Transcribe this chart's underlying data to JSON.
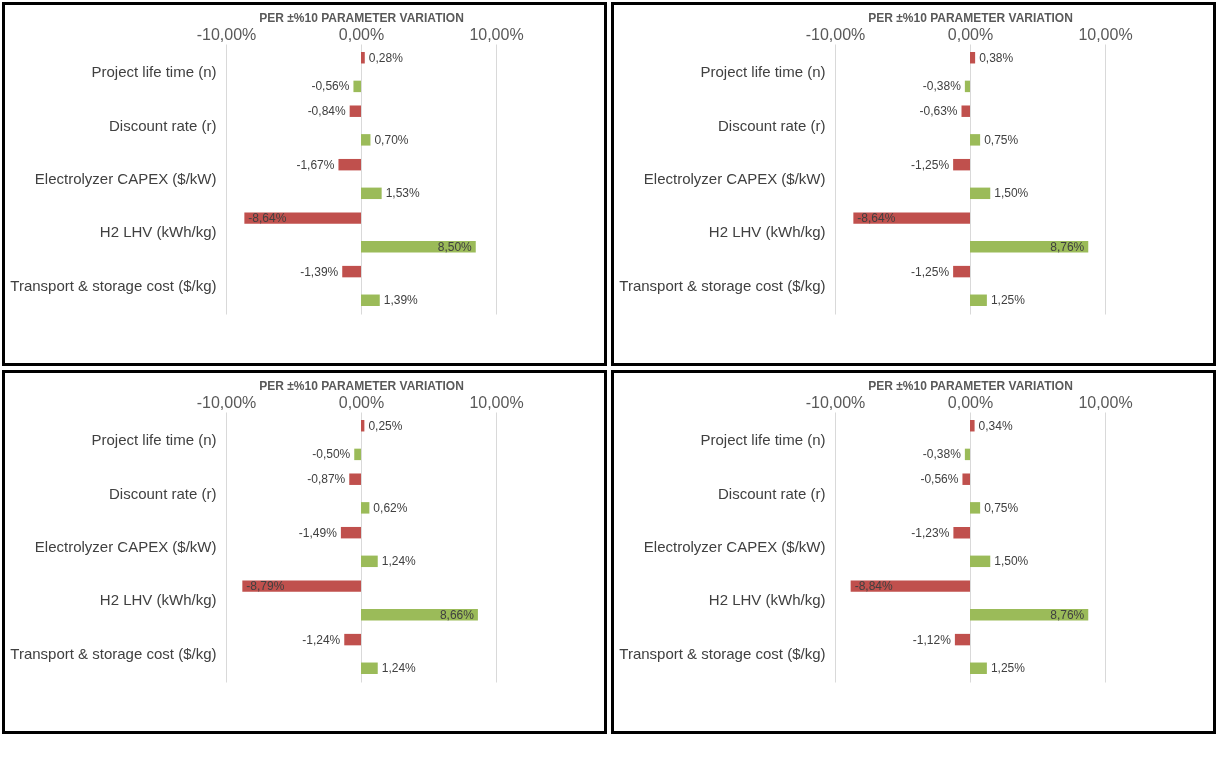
{
  "chart_data": [
    {
      "type": "bar",
      "orientation": "horizontal",
      "xlabel": "PER ±%10 PARAMETER  VARIATION",
      "categories": [
        "Project life time (n)",
        "Discount rate (r)",
        "Electrolyzer CAPEX ($/kW)",
        "H2 LHV (kWh/kg)",
        "Transport & storage cost ($/kg)"
      ],
      "xlim": [
        -10,
        10
      ],
      "xticks": [
        {
          "value": -10,
          "label": "-10,00%"
        },
        {
          "value": 0,
          "label": "0,00%"
        },
        {
          "value": 10,
          "label": "10,00%"
        }
      ],
      "grid": "x",
      "series": [
        {
          "color": "#c0504d",
          "values": [
            0.28,
            -0.84,
            -1.67,
            -8.64,
            -1.39
          ],
          "value_labels": [
            "0,28%",
            "-0,84%",
            "-1,67%",
            "-8,64%",
            "-1,39%"
          ]
        },
        {
          "color": "#9bbb59",
          "values": [
            -0.56,
            0.7,
            1.53,
            8.5,
            1.39
          ],
          "value_labels": [
            "-0,56%",
            "0,70%",
            "1,53%",
            "8,50%",
            "1,39%"
          ]
        }
      ]
    },
    {
      "type": "bar",
      "orientation": "horizontal",
      "xlabel": "PER ±%10 PARAMETER  VARIATION",
      "categories": [
        "Project life time (n)",
        "Discount rate (r)",
        "Electrolyzer CAPEX ($/kW)",
        "H2 LHV (kWh/kg)",
        "Transport & storage cost ($/kg)"
      ],
      "xlim": [
        -10,
        10
      ],
      "xticks": [
        {
          "value": -10,
          "label": "-10,00%"
        },
        {
          "value": 0,
          "label": "0,00%"
        },
        {
          "value": 10,
          "label": "10,00%"
        }
      ],
      "grid": "x",
      "series": [
        {
          "color": "#c0504d",
          "values": [
            0.38,
            -0.63,
            -1.25,
            -8.64,
            -1.25
          ],
          "value_labels": [
            "0,38%",
            "-0,63%",
            "-1,25%",
            "-8,64%",
            "-1,25%"
          ]
        },
        {
          "color": "#9bbb59",
          "values": [
            -0.38,
            0.75,
            1.5,
            8.76,
            1.25
          ],
          "value_labels": [
            "-0,38%",
            "0,75%",
            "1,50%",
            "8,76%",
            "1,25%"
          ]
        }
      ]
    },
    {
      "type": "bar",
      "orientation": "horizontal",
      "xlabel": "PER ±%10 PARAMETER  VARIATION",
      "categories": [
        "Project life time (n)",
        "Discount rate (r)",
        "Electrolyzer CAPEX ($/kW)",
        "H2 LHV (kWh/kg)",
        "Transport & storage cost ($/kg)"
      ],
      "xlim": [
        -10,
        10
      ],
      "xticks": [
        {
          "value": -10,
          "label": "-10,00%"
        },
        {
          "value": 0,
          "label": "0,00%"
        },
        {
          "value": 10,
          "label": "10,00%"
        }
      ],
      "grid": "x",
      "series": [
        {
          "color": "#c0504d",
          "values": [
            0.25,
            -0.87,
            -1.49,
            -8.79,
            -1.24
          ],
          "value_labels": [
            "0,25%",
            "-0,87%",
            "-1,49%",
            "-8,79%",
            "-1,24%"
          ]
        },
        {
          "color": "#9bbb59",
          "values": [
            -0.5,
            0.62,
            1.24,
            8.66,
            1.24
          ],
          "value_labels": [
            "-0,50%",
            "0,62%",
            "1,24%",
            "8,66%",
            "1,24%"
          ]
        }
      ]
    },
    {
      "type": "bar",
      "orientation": "horizontal",
      "xlabel": "PER ±%10 PARAMETER  VARIATION",
      "categories": [
        "Project life time (n)",
        "Discount rate (r)",
        "Electrolyzer CAPEX ($/kW)",
        "H2 LHV (kWh/kg)",
        "Transport & storage cost ($/kg)"
      ],
      "xlim": [
        -10,
        10
      ],
      "xticks": [
        {
          "value": -10,
          "label": "-10,00%"
        },
        {
          "value": 0,
          "label": "0,00%"
        },
        {
          "value": 10,
          "label": "10,00%"
        }
      ],
      "grid": "x",
      "series": [
        {
          "color": "#c0504d",
          "values": [
            0.34,
            -0.56,
            -1.23,
            -8.84,
            -1.12
          ],
          "value_labels": [
            "0,34%",
            "-0,56%",
            "-1,23%",
            "-8,84%",
            "-1,12%"
          ]
        },
        {
          "color": "#9bbb59",
          "values": [
            -0.38,
            0.75,
            1.5,
            8.76,
            1.25
          ],
          "value_labels": [
            "-0,38%",
            "0,75%",
            "1,50%",
            "8,76%",
            "1,25%"
          ]
        }
      ]
    }
  ]
}
